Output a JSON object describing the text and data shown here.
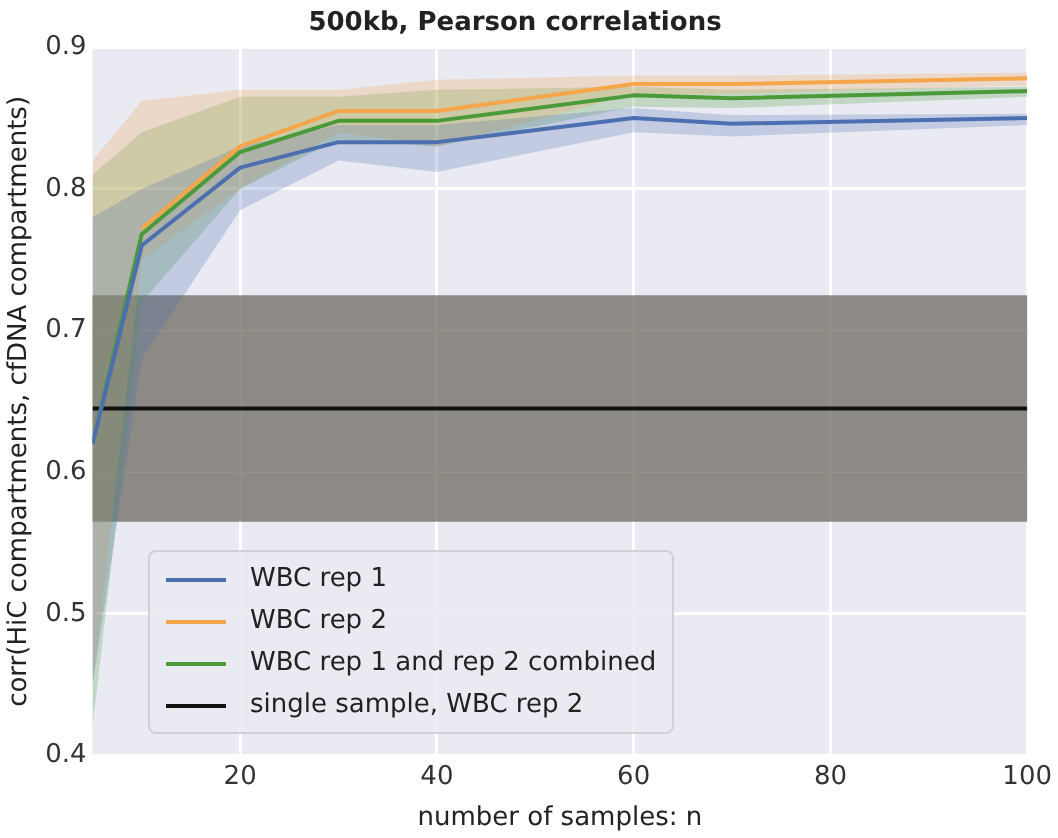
{
  "chart_data": {
    "type": "line",
    "title": "500kb, Pearson correlations",
    "xlabel": "number of samples: n",
    "ylabel": "corr(HiC compartments, cfDNA compartments)",
    "xlim": [
      5,
      100
    ],
    "ylim": [
      0.4,
      0.9
    ],
    "xticks": [
      20,
      40,
      60,
      80,
      100
    ],
    "yticks": [
      0.4,
      0.5,
      0.6,
      0.7,
      0.8,
      0.9
    ],
    "grid": true,
    "legend": "bottom left",
    "series": [
      {
        "name": "WBC rep 1",
        "color": "#4c6fb0",
        "x": [
          5,
          10,
          20,
          30,
          40,
          60,
          70,
          100
        ],
        "values": [
          0.62,
          0.76,
          0.815,
          0.833,
          0.833,
          0.85,
          0.846,
          0.85
        ],
        "lower": [
          0.45,
          0.68,
          0.785,
          0.82,
          0.812,
          0.84,
          0.837,
          0.845
        ],
        "upper": [
          0.78,
          0.8,
          0.83,
          0.845,
          0.845,
          0.857,
          0.852,
          0.853
        ]
      },
      {
        "name": "WBC rep 2",
        "color": "#f5a54a",
        "x": [
          5,
          10,
          20,
          30,
          40,
          60,
          70,
          100
        ],
        "values": [
          null,
          0.772,
          0.83,
          0.855,
          0.855,
          0.874,
          0.874,
          0.878
        ],
        "lower": [
          0.45,
          0.75,
          0.8,
          0.84,
          0.83,
          0.867,
          0.867,
          0.873
        ],
        "upper": [
          0.82,
          0.862,
          0.87,
          0.87,
          0.877,
          0.88,
          0.88,
          0.882
        ]
      },
      {
        "name": "WBC rep 1 and rep 2 combined",
        "color": "#4a9a3a",
        "x": [
          5,
          10,
          20,
          30,
          40,
          60,
          70,
          100
        ],
        "values": [
          0.62,
          0.768,
          0.826,
          0.848,
          0.848,
          0.866,
          0.864,
          0.869
        ],
        "lower": [
          0.42,
          0.72,
          0.8,
          0.835,
          0.83,
          0.858,
          0.857,
          0.865
        ],
        "upper": [
          0.81,
          0.84,
          0.865,
          0.865,
          0.87,
          0.872,
          0.87,
          0.872
        ]
      },
      {
        "name": "single sample, WBC rep 2",
        "color": "#111111",
        "x": [
          5,
          100
        ],
        "values": [
          0.645,
          0.645
        ]
      }
    ],
    "bands": [
      {
        "axis": "y",
        "from": 0.565,
        "to": 0.725,
        "color": "#6e6a62"
      }
    ]
  }
}
